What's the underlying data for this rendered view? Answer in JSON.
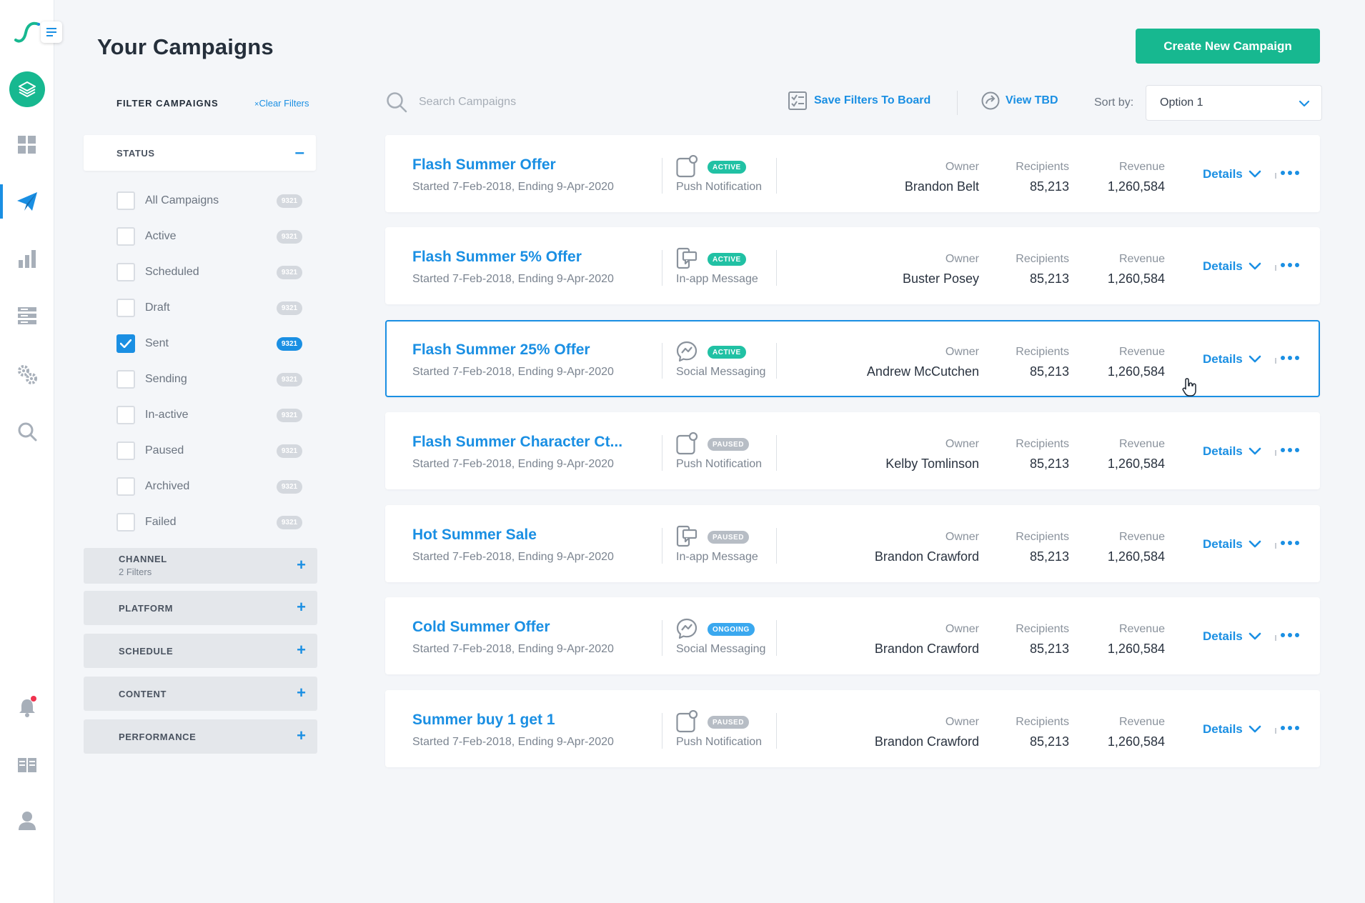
{
  "page": {
    "title": "Your Campaigns",
    "create_button": "Create New Campaign"
  },
  "colors": {
    "accent": "#1a8fe3",
    "brand_green": "#17b890",
    "badge_active": "#21c1a4",
    "badge_paused": "#b7bdc5",
    "badge_ongoing": "#3aa8ef",
    "notification_dot": "#f0324e"
  },
  "rail": {
    "items": [
      {
        "icon": "layers-icon",
        "active": false
      },
      {
        "icon": "dashboard-grid-icon",
        "active": false
      },
      {
        "icon": "paper-plane-icon",
        "active": true
      },
      {
        "icon": "bar-chart-icon",
        "active": false
      },
      {
        "icon": "list-table-icon",
        "active": false
      },
      {
        "icon": "gears-icon",
        "active": false
      },
      {
        "icon": "search-icon",
        "active": false
      },
      {
        "icon": "bell-icon",
        "active": false,
        "has_notification": true
      },
      {
        "icon": "book-open-icon",
        "active": false
      },
      {
        "icon": "user-icon",
        "active": false
      }
    ]
  },
  "filters": {
    "title": "FILTER CAMPAIGNS",
    "clear_label": "Clear Filters",
    "status": {
      "label": "STATUS",
      "items": [
        {
          "label": "All Campaigns",
          "count": "9321",
          "checked": false
        },
        {
          "label": "Active",
          "count": "9321",
          "checked": false
        },
        {
          "label": "Scheduled",
          "count": "9321",
          "checked": false
        },
        {
          "label": "Draft",
          "count": "9321",
          "checked": false
        },
        {
          "label": "Sent",
          "count": "9321",
          "checked": true
        },
        {
          "label": "Sending",
          "count": "9321",
          "checked": false
        },
        {
          "label": "In-active",
          "count": "9321",
          "checked": false
        },
        {
          "label": "Paused",
          "count": "9321",
          "checked": false
        },
        {
          "label": "Archived",
          "count": "9321",
          "checked": false
        },
        {
          "label": "Failed",
          "count": "9321",
          "checked": false
        }
      ]
    },
    "sections": [
      {
        "label": "CHANNEL",
        "sub": "2 Filters"
      },
      {
        "label": "PLATFORM"
      },
      {
        "label": "SCHEDULE"
      },
      {
        "label": "CONTENT"
      },
      {
        "label": "PERFORMANCE"
      }
    ]
  },
  "toolbar": {
    "search_placeholder": "Search Campaigns",
    "save_filters": "Save Filters To Board",
    "view_tbd": "View TBD",
    "sort_label": "Sort by:",
    "sort_value": "Option 1"
  },
  "campaign_columns": {
    "owner": "Owner",
    "recipients": "Recipients",
    "revenue": "Revenue",
    "details": "Details"
  },
  "campaigns": [
    {
      "name": "Flash Summer Offer",
      "dates": "Started 7-Feb-2018, Ending 9-Apr-2020",
      "channel": "Push Notification",
      "channel_icon": "push-notification-icon",
      "status": "ACTIVE",
      "status_type": "active",
      "owner": "Brandon Belt",
      "recipients": "85,213",
      "revenue": "1,260,584",
      "selected": false
    },
    {
      "name": "Flash Summer 5% Offer",
      "dates": "Started 7-Feb-2018, Ending 9-Apr-2020",
      "channel": "In-app Message",
      "channel_icon": "in-app-message-icon",
      "status": "ACTIVE",
      "status_type": "active",
      "owner": "Buster Posey",
      "recipients": "85,213",
      "revenue": "1,260,584",
      "selected": false
    },
    {
      "name": "Flash Summer 25% Offer",
      "dates": "Started 7-Feb-2018, Ending 9-Apr-2020",
      "channel": "Social Messaging",
      "channel_icon": "social-messaging-icon",
      "status": "ACTIVE",
      "status_type": "active",
      "owner": "Andrew McCutchen",
      "recipients": "85,213",
      "revenue": "1,260,584",
      "selected": true
    },
    {
      "name": "Flash Summer Character Ct...",
      "dates": "Started 7-Feb-2018, Ending 9-Apr-2020",
      "channel": "Push Notification",
      "channel_icon": "push-notification-icon",
      "status": "PAUSED",
      "status_type": "paused",
      "owner": "Kelby Tomlinson",
      "recipients": "85,213",
      "revenue": "1,260,584",
      "selected": false
    },
    {
      "name": "Hot Summer Sale",
      "dates": "Started 7-Feb-2018, Ending 9-Apr-2020",
      "channel": "In-app Message",
      "channel_icon": "in-app-message-icon",
      "status": "PAUSED",
      "status_type": "paused",
      "owner": "Brandon Crawford",
      "recipients": "85,213",
      "revenue": "1,260,584",
      "selected": false
    },
    {
      "name": "Cold Summer Offer",
      "dates": "Started 7-Feb-2018, Ending 9-Apr-2020",
      "channel": "Social Messaging",
      "channel_icon": "social-messaging-icon",
      "status": "ONGOING",
      "status_type": "ongoing",
      "owner": "Brandon Crawford",
      "recipients": "85,213",
      "revenue": "1,260,584",
      "selected": false
    },
    {
      "name": "Summer buy 1 get 1",
      "dates": "Started 7-Feb-2018, Ending 9-Apr-2020",
      "channel": "Push Notification",
      "channel_icon": "push-notification-icon",
      "status": "PAUSED",
      "status_type": "paused",
      "owner": "Brandon Crawford",
      "recipients": "85,213",
      "revenue": "1,260,584",
      "selected": false
    }
  ]
}
